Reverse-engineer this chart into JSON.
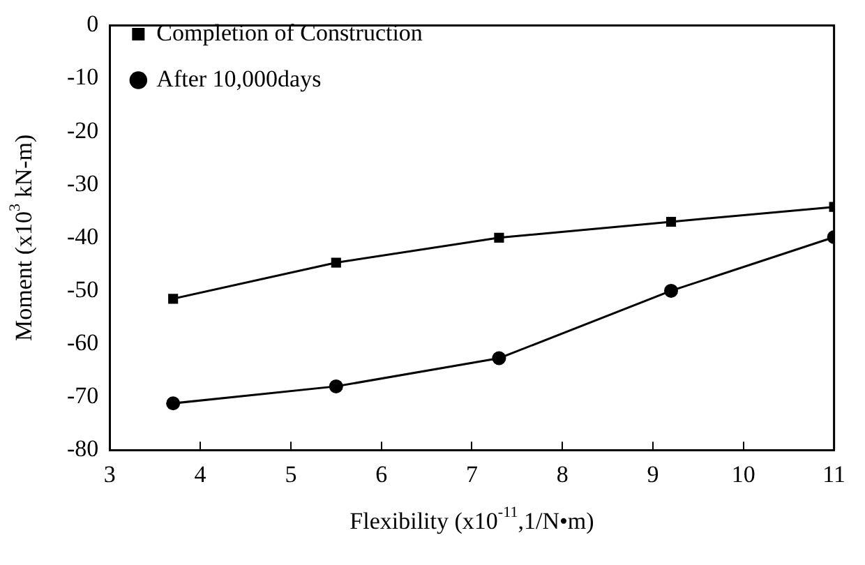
{
  "chart_data": {
    "type": "line",
    "xlabel": "Flexibility (x10$^{-11}$,1/N•m)",
    "ylabel": "Moment (x10$^{3}$ kN-m)",
    "x": [
      3.7,
      5.5,
      7.3,
      9.2,
      11
    ],
    "series": [
      {
        "name": "Completion of Construction",
        "color": "#000000",
        "marker": "square",
        "values": [
          -51.5,
          -44.7,
          -40,
          -37,
          -34.2
        ]
      },
      {
        "name": "After 10,000days",
        "color": "#000000",
        "marker": "circle",
        "values": [
          -71.2,
          -68,
          -62.7,
          -50,
          -39.9
        ]
      }
    ],
    "xlim": [
      3,
      11
    ],
    "xticks": [
      3,
      4,
      5,
      6,
      7,
      8,
      9,
      10,
      11
    ],
    "ylim": [
      -80,
      0
    ],
    "yticks": [
      -80,
      -70,
      -60,
      -50,
      -40,
      -30,
      -20,
      -10,
      0
    ],
    "grid": false,
    "legend": "top left",
    "line_style": "solid"
  }
}
